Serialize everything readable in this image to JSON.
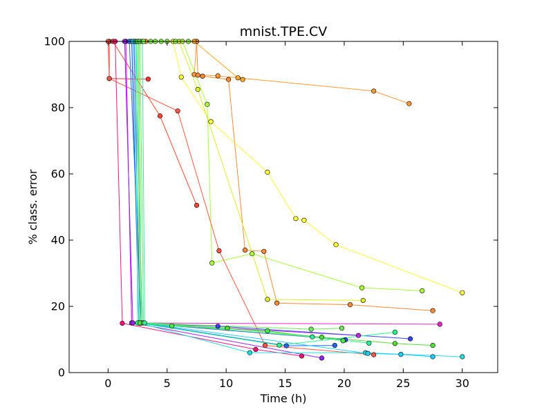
{
  "chart_data": {
    "type": "line",
    "title": "mnist.TPE.CV",
    "xlabel": "Time (h)",
    "ylabel": "% class. error",
    "xlim": [
      -3.3,
      33
    ],
    "ylim": [
      0,
      100
    ],
    "x_ticks": [
      0,
      5,
      10,
      15,
      20,
      25,
      30
    ],
    "y_ticks": [
      0,
      20,
      40,
      60,
      80,
      100
    ],
    "x_tick_labels": [
      "0",
      "5",
      "10",
      "15",
      "20",
      "25",
      "30"
    ],
    "y_tick_labels": [
      "0",
      "20",
      "40",
      "60",
      "80",
      "100"
    ],
    "grid": false,
    "legend": false,
    "series": [
      {
        "color": "#ff9933",
        "points": [
          [
            3.2,
            100
          ],
          [
            7.5,
            100
          ],
          [
            7.3,
            90
          ],
          [
            9.3,
            89.6
          ],
          [
            22.5,
            85
          ],
          [
            25.5,
            81.2
          ]
        ]
      },
      {
        "color": "#ff8833",
        "points": [
          [
            7.5,
            100
          ],
          [
            7.6,
            89.8
          ],
          [
            8.0,
            89.5
          ],
          [
            10.2,
            88.5
          ],
          [
            11.6,
            37
          ],
          [
            13.2,
            36.6
          ],
          [
            14.3,
            21
          ],
          [
            20.5,
            20.5
          ],
          [
            27.5,
            18.7
          ]
        ]
      },
      {
        "color": "#ffaa22",
        "points": [
          [
            7.3,
            100
          ],
          [
            11.0,
            89
          ],
          [
            11.4,
            88.5
          ]
        ]
      },
      {
        "color": "#ffff33",
        "points": [
          [
            5.5,
            100
          ],
          [
            6.2,
            89.2
          ],
          [
            8.7,
            75.8
          ],
          [
            13.5,
            60.5
          ],
          [
            15.9,
            46.5
          ],
          [
            16.6,
            46
          ],
          [
            19.3,
            38.6
          ],
          [
            30.0,
            24.1
          ]
        ]
      },
      {
        "color": "#ddee22",
        "points": [
          [
            6.0,
            100
          ],
          [
            7.6,
            85.5
          ],
          [
            13.5,
            22.1
          ],
          [
            21.6,
            21.8
          ]
        ]
      },
      {
        "color": "#aaff33",
        "points": [
          [
            6.3,
            100
          ],
          [
            8.4,
            81
          ],
          [
            8.8,
            33.1
          ],
          [
            12.2,
            35.9
          ],
          [
            21.5,
            25.6
          ],
          [
            26.6,
            24.7
          ]
        ]
      },
      {
        "color": "#ff3333",
        "points": [
          [
            0.1,
            100
          ],
          [
            0.1,
            88.8
          ],
          [
            3.4,
            88.6
          ]
        ]
      },
      {
        "color": "#ff5544",
        "points": [
          [
            0.0,
            100
          ],
          [
            0.1,
            88.8
          ],
          [
            5.9,
            79
          ],
          [
            9.4,
            36.8
          ],
          [
            13.3,
            8.2
          ],
          [
            22.5,
            5.4
          ]
        ]
      },
      {
        "color": "#ff4433",
        "points": [
          [
            0.4,
            100
          ],
          [
            4.4,
            77.5
          ],
          [
            7.5,
            50.5
          ]
        ]
      },
      {
        "color": "#ff1177",
        "points": [
          [
            0.6,
            100
          ],
          [
            1.2,
            14.9
          ],
          [
            12.5,
            7
          ],
          [
            16.4,
            5
          ]
        ]
      },
      {
        "color": "#ee22cc",
        "points": [
          [
            1.5,
            100
          ],
          [
            2.0,
            15
          ],
          [
            28.1,
            14.6
          ]
        ]
      },
      {
        "color": "#cc22ee",
        "points": [
          [
            1.5,
            100
          ],
          [
            2.0,
            15
          ],
          [
            21.2,
            11.2
          ]
        ]
      },
      {
        "color": "#9922ee",
        "points": [
          [
            1.4,
            100
          ],
          [
            2.1,
            15
          ],
          [
            18.1,
            4.4
          ]
        ]
      },
      {
        "color": "#3344ee",
        "points": [
          [
            2.0,
            100
          ],
          [
            2.6,
            15
          ],
          [
            9.3,
            14
          ],
          [
            25.6,
            10.2
          ]
        ]
      },
      {
        "color": "#2266ff",
        "points": [
          [
            1.8,
            100
          ],
          [
            2.8,
            15
          ],
          [
            15.1,
            8.1
          ],
          [
            19.2,
            8.2
          ]
        ]
      },
      {
        "color": "#4444dd",
        "points": [
          [
            2.2,
            100
          ],
          [
            2.7,
            14.9
          ],
          [
            20.1,
            9.9
          ]
        ]
      },
      {
        "color": "#22dddd",
        "points": [
          [
            2.1,
            100
          ],
          [
            2.6,
            15
          ],
          [
            12.0,
            6
          ],
          [
            21.8,
            6
          ],
          [
            30.0,
            4.8
          ]
        ]
      },
      {
        "color": "#22ccff",
        "points": [
          [
            2.3,
            100
          ],
          [
            2.9,
            15
          ],
          [
            22.0,
            5.8
          ],
          [
            24.8,
            5.5
          ],
          [
            27.5,
            4.8
          ]
        ]
      },
      {
        "color": "#22ff88",
        "points": [
          [
            2.4,
            100
          ],
          [
            2.5,
            15
          ],
          [
            14.5,
            8.3
          ],
          [
            24.3,
            12.2
          ]
        ]
      },
      {
        "color": "#44ee44",
        "points": [
          [
            2.6,
            100
          ],
          [
            2.8,
            15
          ],
          [
            5.4,
            14.1
          ],
          [
            13.5,
            12.6
          ],
          [
            19.9,
            9.6
          ]
        ]
      },
      {
        "color": "#55dd33",
        "points": [
          [
            2.5,
            100
          ],
          [
            2.7,
            15
          ],
          [
            10.1,
            13.4
          ],
          [
            18.1,
            10.7
          ],
          [
            24.3,
            8.8
          ],
          [
            27.5,
            8.2
          ]
        ]
      },
      {
        "color": "#66ee55",
        "points": [
          [
            2.7,
            100
          ],
          [
            3.0,
            15
          ],
          [
            17.2,
            13.1
          ],
          [
            19.8,
            13.4
          ]
        ]
      },
      {
        "color": "#33ee99",
        "points": [
          [
            2.9,
            100
          ],
          [
            3.1,
            15
          ],
          [
            17.3,
            10.8
          ],
          [
            22.1,
            8.9
          ]
        ]
      },
      {
        "color": "#88ff44",
        "points": [
          [
            3.0,
            100
          ],
          [
            3.6,
            100
          ],
          [
            4.0,
            100
          ],
          [
            4.5,
            100
          ],
          [
            5.0,
            100
          ],
          [
            5.7,
            100
          ],
          [
            6.8,
            100
          ]
        ]
      }
    ]
  }
}
